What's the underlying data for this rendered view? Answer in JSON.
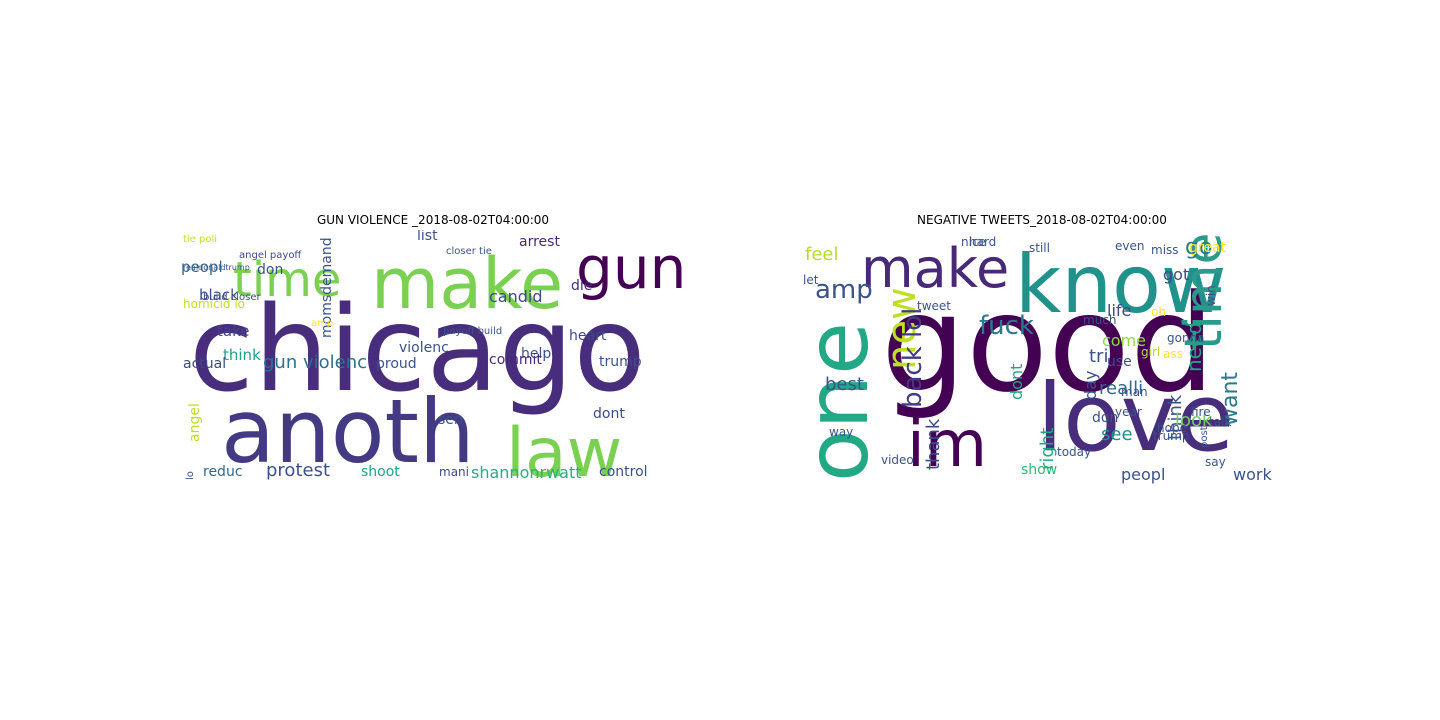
{
  "left": {
    "title": "GUN VIOLENCE _2018-08-02T04:00:00",
    "words": [
      {
        "text": "chicago",
        "color": "#472d7b"
      },
      {
        "text": "anoth",
        "color": "#443a83"
      },
      {
        "text": "make",
        "color": "#7ad151"
      },
      {
        "text": "law",
        "color": "#7ad151"
      },
      {
        "text": "gun",
        "color": "#440154"
      },
      {
        "text": "time",
        "color": "#7ad151"
      },
      {
        "text": "gun violenc",
        "color": "#2c728e"
      },
      {
        "text": "protest",
        "color": "#3b528b"
      },
      {
        "text": "shannonrwatt",
        "color": "#28ae80"
      },
      {
        "text": "peopl",
        "color": "#31688e"
      },
      {
        "text": "black",
        "color": "#3b528b"
      },
      {
        "text": "candid",
        "color": "#3e4989"
      },
      {
        "text": "arrest",
        "color": "#482878"
      },
      {
        "text": "help",
        "color": "#3b528b"
      },
      {
        "text": "die",
        "color": "#472d7b"
      },
      {
        "text": "heart",
        "color": "#3e4989"
      },
      {
        "text": "momsdemand",
        "color": "#3b528b"
      },
      {
        "text": "violenc",
        "color": "#3b528b"
      },
      {
        "text": "take",
        "color": "#414487"
      },
      {
        "text": "think",
        "color": "#1fa187"
      },
      {
        "text": "actual",
        "color": "#3e4989"
      },
      {
        "text": "proud",
        "color": "#3b528b"
      },
      {
        "text": "sen",
        "color": "#3b528b"
      },
      {
        "text": "commit",
        "color": "#482878"
      },
      {
        "text": "trump",
        "color": "#3b528b"
      },
      {
        "text": "dont",
        "color": "#3e4989"
      },
      {
        "text": "control",
        "color": "#3b528b"
      },
      {
        "text": "reduc",
        "color": "#31688e"
      },
      {
        "text": "shoot",
        "color": "#20a486"
      },
      {
        "text": "mani",
        "color": "#3e4989"
      },
      {
        "text": "list",
        "color": "#3b528b"
      },
      {
        "text": "don",
        "color": "#3b528b"
      },
      {
        "text": "angel",
        "color": "#bddf26"
      },
      {
        "text": "homicid lo",
        "color": "#c2df23"
      },
      {
        "text": "build closer",
        "color": "#3e4989"
      },
      {
        "text": "angel payoff",
        "color": "#3e4989"
      },
      {
        "text": "payoff build",
        "color": "#3b528b"
      },
      {
        "text": "closer tie",
        "color": "#3b528b"
      },
      {
        "text": "lo",
        "color": "#3b528b"
      },
      {
        "text": "amp",
        "color": "#fde725"
      },
      {
        "text": "tie poli",
        "color": "#c2df23"
      },
      {
        "text": "realdonaldtrump",
        "color": "#3b528b"
      }
    ]
  },
  "right": {
    "title": "NEGATIVE TWEETS_2018-08-02T04:00:00",
    "words": [
      {
        "text": "good",
        "color": "#440154"
      },
      {
        "text": "love",
        "color": "#472d7b"
      },
      {
        "text": "one",
        "color": "#22a884"
      },
      {
        "text": "know",
        "color": "#21918c"
      },
      {
        "text": "make",
        "color": "#482878"
      },
      {
        "text": "time",
        "color": "#2a9a8a"
      },
      {
        "text": "im",
        "color": "#440154"
      },
      {
        "text": "new",
        "color": "#bddf26"
      },
      {
        "text": "back lol",
        "color": "#443a83"
      },
      {
        "text": "fuck",
        "color": "#2a788e"
      },
      {
        "text": "amp",
        "color": "#3b528b"
      },
      {
        "text": "thank",
        "color": "#3e4989"
      },
      {
        "text": "need",
        "color": "#20a486"
      },
      {
        "text": "think",
        "color": "#3b528b"
      },
      {
        "text": "want",
        "color": "#2a788e"
      },
      {
        "text": "go",
        "color": "#2a788e"
      },
      {
        "text": "feel",
        "color": "#b5de2b"
      },
      {
        "text": "got",
        "color": "#3e4989"
      },
      {
        "text": "realli",
        "color": "#31688e"
      },
      {
        "text": "see",
        "color": "#21918c"
      },
      {
        "text": "look",
        "color": "#6ece58"
      },
      {
        "text": "work",
        "color": "#3b528b"
      },
      {
        "text": "peopl",
        "color": "#3b528b"
      },
      {
        "text": "day",
        "color": "#3b528b"
      },
      {
        "text": "dont",
        "color": "#20a486"
      },
      {
        "text": "right",
        "color": "#22a884"
      },
      {
        "text": "best",
        "color": "#3b528b"
      },
      {
        "text": "tri",
        "color": "#3b528b"
      },
      {
        "text": "don",
        "color": "#3b528b"
      },
      {
        "text": "life",
        "color": "#3e4989"
      },
      {
        "text": "come",
        "color": "#8fd744"
      },
      {
        "text": "show",
        "color": "#35b779"
      },
      {
        "text": "video",
        "color": "#3b528b"
      },
      {
        "text": "use",
        "color": "#3b528b"
      },
      {
        "text": "tweet",
        "color": "#3b528b"
      },
      {
        "text": "nice",
        "color": "#3b528b"
      },
      {
        "text": "hard",
        "color": "#3b528b"
      },
      {
        "text": "great",
        "color": "#fde725"
      },
      {
        "text": "miss",
        "color": "#3b528b"
      },
      {
        "text": "year",
        "color": "#3b528b"
      },
      {
        "text": "today",
        "color": "#3b528b"
      },
      {
        "text": "hope",
        "color": "#3b528b"
      },
      {
        "text": "still",
        "color": "#3b528b"
      },
      {
        "text": "even",
        "color": "#3b528b"
      },
      {
        "text": "much",
        "color": "#3b528b"
      },
      {
        "text": "girl",
        "color": "#b5de2b"
      },
      {
        "text": "man",
        "color": "#3b528b"
      },
      {
        "text": "oh",
        "color": "#fde725"
      },
      {
        "text": "talk",
        "color": "#3b528b"
      },
      {
        "text": "way",
        "color": "#3b528b"
      },
      {
        "text": "say",
        "color": "#3b528b"
      },
      {
        "text": "gonna",
        "color": "#3b528b"
      },
      {
        "text": "win",
        "color": "#3b528b"
      },
      {
        "text": "trump",
        "color": "#3b528b"
      },
      {
        "text": "post",
        "color": "#3b528b"
      },
      {
        "text": "let",
        "color": "#3b528b"
      },
      {
        "text": "fire",
        "color": "#3b528b"
      },
      {
        "text": "ass",
        "color": "#fde725"
      }
    ]
  }
}
